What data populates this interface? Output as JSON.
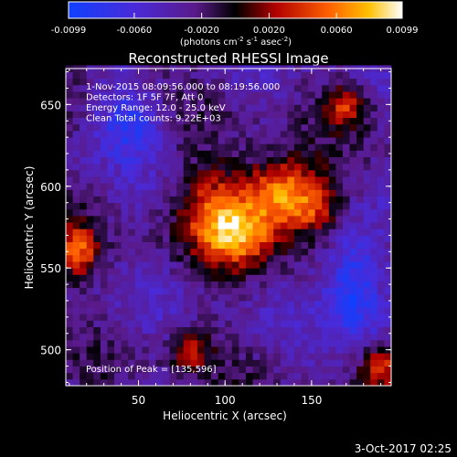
{
  "chart_data": {
    "type": "heatmap",
    "title": "Reconstructed RHESSI Image",
    "xlabel": "Heliocentric X (arcsec)",
    "ylabel": "Heliocentric Y (arcsec)",
    "xlim": [
      8,
      196
    ],
    "ylim": [
      478,
      672
    ],
    "x_ticks": [
      50,
      100,
      150
    ],
    "y_ticks": [
      500,
      550,
      600,
      650
    ],
    "colorbar": {
      "range": [
        -0.0099,
        0.0099
      ],
      "ticks": [
        "-0.0099",
        "-0.0060",
        "-0.0020",
        "0.0020",
        "0.0060",
        "0.0099"
      ],
      "label": "(photons cm",
      "label_exp1": "-2",
      "label_mid": " s",
      "label_exp2": "-1",
      "label_mid2": " asec",
      "label_exp3": "-2",
      "label_end": ")"
    },
    "info_lines": [
      "1-Nov-2015 08:09:56.000 to 08:19:56.000",
      "Detectors: 1F 5F 7F, Att 0",
      "Energy Range: 12.0 - 25.0 keV",
      "Clean     Total counts: 9.22E+03"
    ],
    "peak_label": "Position of Peak = [135,596]",
    "peak": [
      135,
      596
    ],
    "sources": [
      {
        "x": 133,
        "y": 596,
        "amp": 0.0105,
        "sx": 17,
        "sy": 15
      },
      {
        "x": 108,
        "y": 570,
        "amp": 0.0085,
        "sx": 16,
        "sy": 14
      },
      {
        "x": 92,
        "y": 590,
        "amp": 0.0055,
        "sx": 14,
        "sy": 18
      },
      {
        "x": 152,
        "y": 585,
        "amp": 0.004,
        "sx": 10,
        "sy": 10
      }
    ]
  },
  "footer": {
    "timestamp": "3-Oct-2017 02:25"
  }
}
